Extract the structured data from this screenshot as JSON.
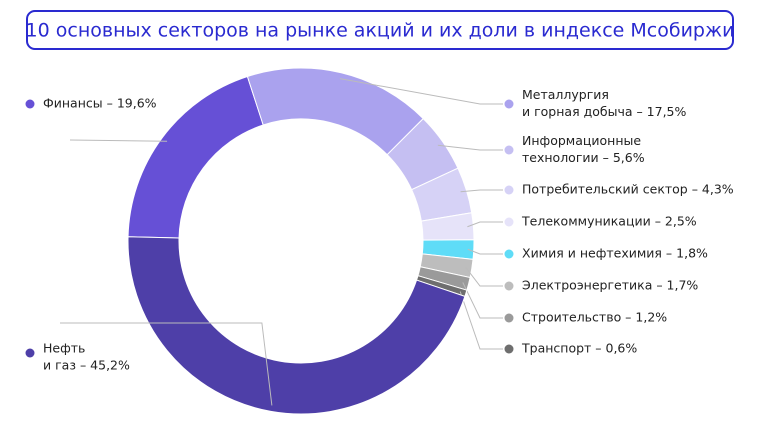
{
  "chart_data": {
    "type": "pie",
    "donut": true,
    "title": "10 основных секторов на рынке акций и их доли в индексе Мсобиржи",
    "labels": [
      [
        "Финансы – 19,6%"
      ],
      [
        "Металлургия",
        "и горная добыча – 17,5%"
      ],
      [
        "Информационные",
        "технологии – 5,6%"
      ],
      [
        "Потребительский сектор – 4,3%"
      ],
      [
        "Телекоммуникации – 2,5%"
      ],
      [
        "Химия и нефтехимия – 1,8%"
      ],
      [
        "Электроэнергетика – 1,7%"
      ],
      [
        "Строительство – 1,2%"
      ],
      [
        "Транспорт – 0,6%"
      ],
      [
        "Нефть",
        "и газ – 45,2%"
      ]
    ],
    "values": [
      19.6,
      17.5,
      5.6,
      4.3,
      2.5,
      1.8,
      1.7,
      1.2,
      0.6,
      45.2
    ],
    "colors": [
      "#6650d6",
      "#aaa2ee",
      "#c5bff2",
      "#d6d2f6",
      "#e6e3f9",
      "#5fdcf7",
      "#bdbdbd",
      "#9a9a9a",
      "#6e6e6e",
      "#4e3fa8"
    ]
  }
}
